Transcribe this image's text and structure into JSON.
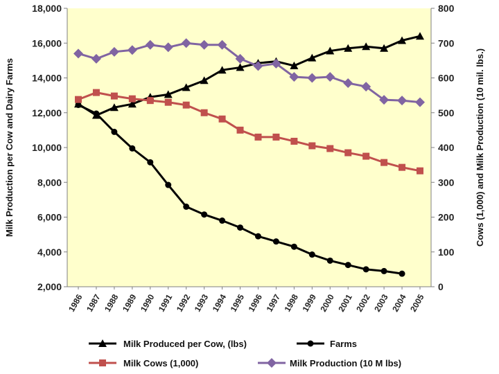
{
  "chart_data": {
    "type": "line",
    "title": "",
    "categories": [
      "1986",
      "1987",
      "1988",
      "1989",
      "1990",
      "1991",
      "1992",
      "1993",
      "1994",
      "1995",
      "1996",
      "1997",
      "1998",
      "1999",
      "2000",
      "2001",
      "2002",
      "2003",
      "2004",
      "2005"
    ],
    "y_left": {
      "label": "Milk Production per Cow and Dairy Farms",
      "range": [
        2000,
        18000
      ],
      "ticks": [
        "2,000",
        "4,000",
        "6,000",
        "8,000",
        "10,000",
        "12,000",
        "14,000",
        "16,000",
        "18,000"
      ]
    },
    "y_right": {
      "label": "Cows (1,000) and Milk Production (10 mil. lbs.)",
      "range": [
        0,
        800
      ],
      "ticks": [
        "0",
        "100",
        "200",
        "300",
        "400",
        "500",
        "600",
        "700",
        "800"
      ]
    },
    "series": [
      {
        "name": "Milk Produced per Cow, (lbs)",
        "axis": "left",
        "color": "#000000",
        "marker": "triangle",
        "values": [
          12500,
          11850,
          12300,
          12500,
          12900,
          13050,
          13450,
          13850,
          14450,
          14600,
          14850,
          14950,
          14700,
          15150,
          15550,
          15700,
          15800,
          15700,
          16150,
          16400
        ]
      },
      {
        "name": "Farms",
        "axis": "left",
        "color": "#000000",
        "marker": "circle",
        "values": [
          12450,
          11950,
          10900,
          9950,
          9150,
          7850,
          6600,
          6150,
          5800,
          5400,
          4900,
          4600,
          4300,
          3850,
          3500,
          3250,
          3000,
          2900,
          2750,
          null
        ]
      },
      {
        "name": "Milk Cows (1,000)",
        "axis": "right",
        "color": "#c0504d",
        "marker": "square",
        "values": [
          538,
          558,
          548,
          540,
          535,
          530,
          522,
          500,
          482,
          450,
          430,
          430,
          418,
          405,
          397,
          385,
          375,
          357,
          343,
          333
        ]
      },
      {
        "name": "Milk Production (10 M lbs)",
        "axis": "right",
        "color": "#8064a2",
        "marker": "diamond",
        "values": [
          670,
          655,
          675,
          680,
          695,
          688,
          700,
          695,
          695,
          655,
          634,
          641,
          603,
          600,
          603,
          585,
          575,
          537,
          535,
          530
        ]
      }
    ],
    "legend": [
      {
        "label": "Milk Produced per Cow, (lbs)",
        "color": "#000000",
        "marker": "triangle"
      },
      {
        "label": "Farms",
        "color": "#000000",
        "marker": "circle"
      },
      {
        "label": "Milk Cows (1,000)",
        "color": "#c0504d",
        "marker": "square"
      },
      {
        "label": "Milk Production (10 M lbs)",
        "color": "#8064a2",
        "marker": "diamond"
      }
    ],
    "legend_position": "bottom",
    "grid": false
  }
}
